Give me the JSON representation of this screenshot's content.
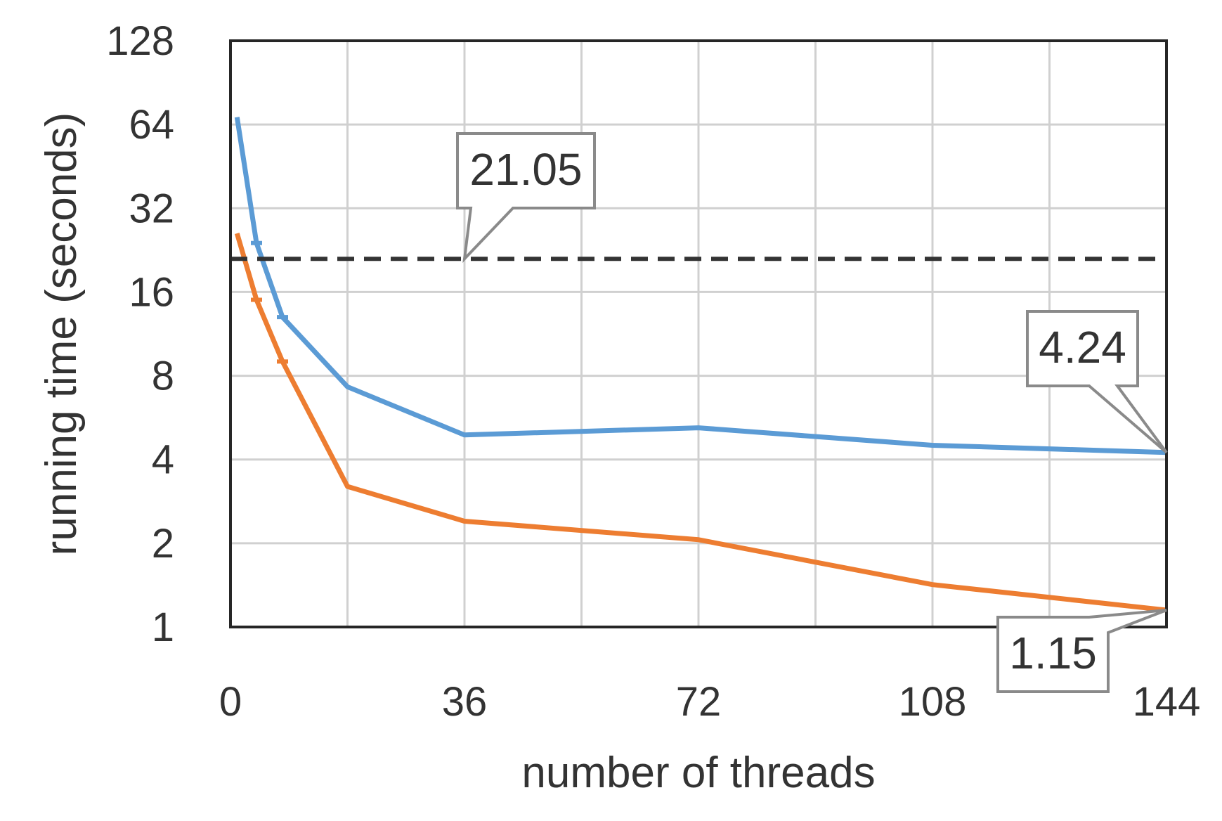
{
  "chart_data": {
    "type": "line",
    "xlabel": "number of threads",
    "ylabel": "running time (seconds)",
    "xlim": [
      0,
      144
    ],
    "ylim": [
      1,
      128
    ],
    "yscale": "log2",
    "x_ticks": [
      0,
      36,
      72,
      108,
      144
    ],
    "y_ticks": [
      1,
      2,
      4,
      8,
      16,
      32,
      64,
      128
    ],
    "x_tick_labels": [
      "0",
      "36",
      "72",
      "108",
      "144"
    ],
    "y_tick_labels": [
      "1",
      "2",
      "4",
      "8",
      "16",
      "32",
      "64",
      "128"
    ],
    "x_minor_gridlines": [
      18,
      54,
      90,
      126
    ],
    "grid": true,
    "series": [
      {
        "color": "#5B9BD5",
        "x": [
          1,
          4,
          8,
          18,
          36,
          72,
          108,
          144
        ],
        "y": [
          68,
          24,
          13,
          7.3,
          4.9,
          5.2,
          4.5,
          4.24
        ],
        "error_bars": true
      },
      {
        "color": "#ED7D31",
        "x": [
          1,
          4,
          8,
          18,
          36,
          72,
          108,
          144
        ],
        "y": [
          26,
          15,
          9,
          3.2,
          2.4,
          2.06,
          1.42,
          1.15
        ],
        "error_bars": true
      },
      {
        "color": "#333333",
        "style": "dashed",
        "x": [
          0,
          144
        ],
        "y": [
          21.05,
          21.05
        ]
      }
    ],
    "annotations": [
      {
        "text": "21.05",
        "x": 36,
        "y": 21.05
      },
      {
        "text": "4.24",
        "x": 144,
        "y": 4.24
      },
      {
        "text": "1.15",
        "x": 144,
        "y": 1.15
      }
    ]
  }
}
